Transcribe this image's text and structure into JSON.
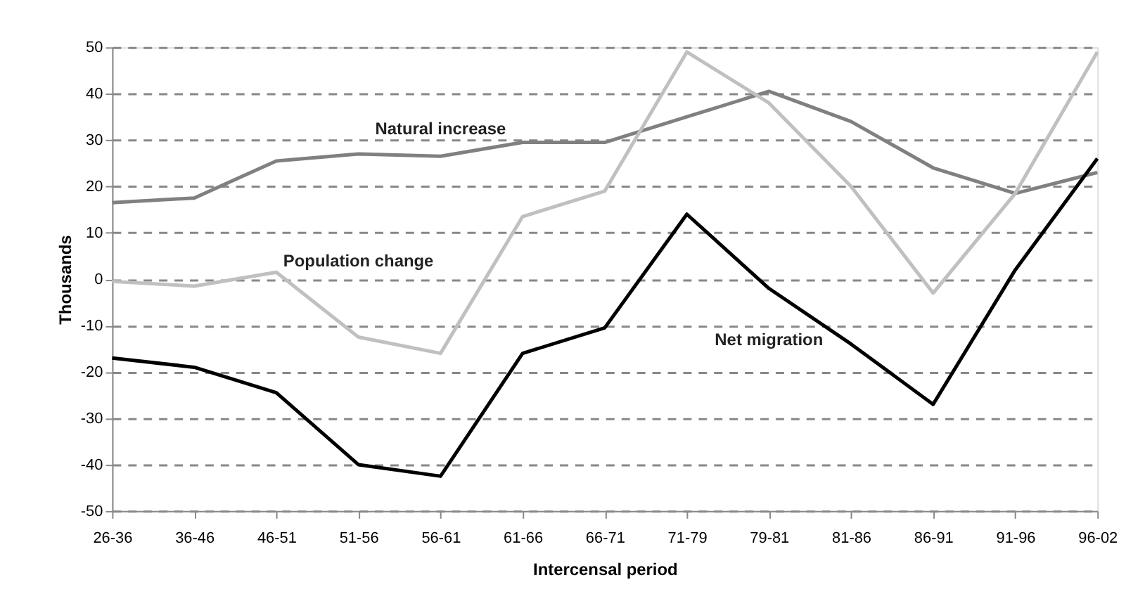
{
  "chart_data": {
    "type": "line",
    "xlabel": "Intercensal period",
    "ylabel": "Thousands",
    "categories": [
      "26-36",
      "36-46",
      "46-51",
      "51-56",
      "56-61",
      "61-66",
      "66-71",
      "71-79",
      "79-81",
      "81-86",
      "86-91",
      "91-96",
      "96-02"
    ],
    "series": [
      {
        "name": "Natural increase",
        "color": "#808080",
        "values": [
          16.5,
          17.5,
          25.5,
          27,
          26.5,
          29.5,
          29.5,
          35,
          40.5,
          34,
          24,
          18.5,
          23
        ]
      },
      {
        "name": "Population change",
        "color": "#c0c0c0",
        "values": [
          -0.5,
          -1.5,
          1.5,
          -12.5,
          -16,
          13.5,
          19,
          49,
          38,
          20,
          -3,
          18.5,
          49
        ]
      },
      {
        "name": "Net migration",
        "color": "#000000",
        "values": [
          -17,
          -19,
          -24.5,
          -40,
          -42.5,
          -16,
          -10.5,
          14,
          -2,
          -14,
          -27,
          2,
          26
        ]
      }
    ],
    "ylim": [
      -50,
      50
    ],
    "yticks": [
      -50,
      -40,
      -30,
      -20,
      -10,
      0,
      10,
      20,
      30,
      40,
      50
    ],
    "grid": "y",
    "legend": false,
    "marker": "none",
    "line_style": "solid"
  }
}
